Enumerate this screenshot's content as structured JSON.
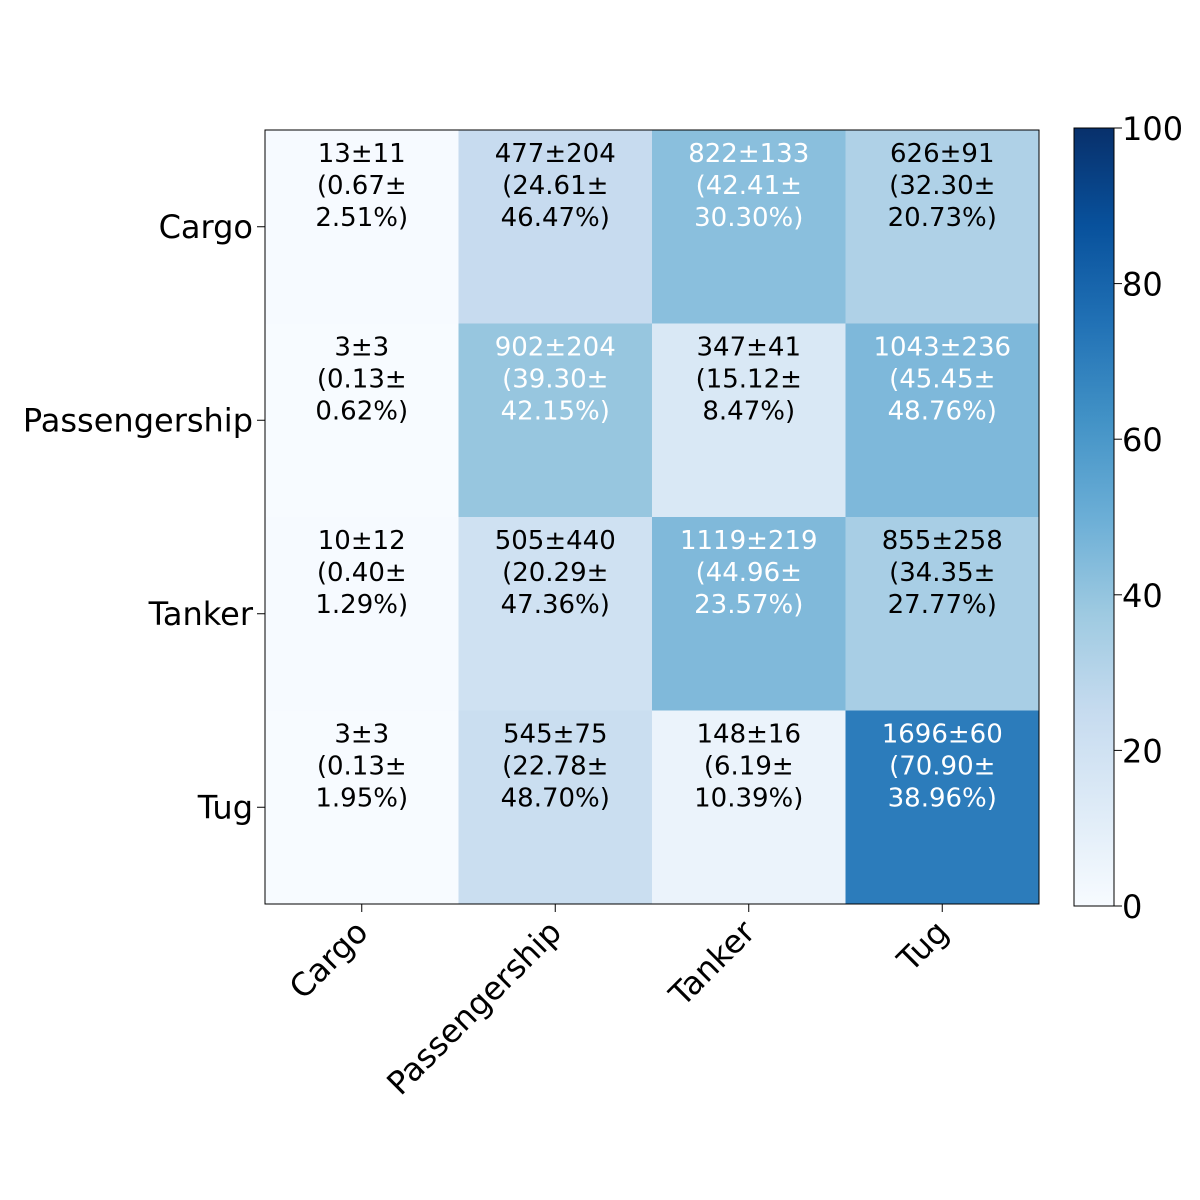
{
  "chart_data": {
    "type": "heatmap",
    "rows": [
      "Cargo",
      "Passengership",
      "Tanker",
      "Tug"
    ],
    "columns": [
      "Cargo",
      "Passengership",
      "Tanker",
      "Tug"
    ],
    "values": [
      [
        0.67,
        24.61,
        42.41,
        32.3
      ],
      [
        0.13,
        39.3,
        15.12,
        45.45
      ],
      [
        0.4,
        20.29,
        44.96,
        34.35
      ],
      [
        0.13,
        22.78,
        6.19,
        70.9
      ]
    ],
    "cell_labels": [
      [
        [
          "13±11",
          "(0.67±",
          "2.51%)"
        ],
        [
          "477±204",
          "(24.61±",
          "46.47%)"
        ],
        [
          "822±133",
          "(42.41±",
          "30.30%)"
        ],
        [
          "626±91",
          "(32.30±",
          "20.73%)"
        ]
      ],
      [
        [
          "3±3",
          "(0.13±",
          "0.62%)"
        ],
        [
          "902±204",
          "(39.30±",
          "42.15%)"
        ],
        [
          "347±41",
          "(15.12±",
          "8.47%)"
        ],
        [
          "1043±236",
          "(45.45±",
          "48.76%)"
        ]
      ],
      [
        [
          "10±12",
          "(0.40±",
          "1.29%)"
        ],
        [
          "505±440",
          "(20.29±",
          "47.36%)"
        ],
        [
          "1119±219",
          "(44.96±",
          "23.57%)"
        ],
        [
          "855±258",
          "(34.35±",
          "27.77%)"
        ]
      ],
      [
        [
          "3±3",
          "(0.13±",
          "1.95%)"
        ],
        [
          "545±75",
          "(22.78±",
          "48.70%)"
        ],
        [
          "148±16",
          "(6.19±",
          "10.39%)"
        ],
        [
          "1696±60",
          "(70.90±",
          "38.96%)"
        ]
      ]
    ],
    "text_color_dark": "#000000",
    "text_color_light": "#ffffff",
    "colormap": "Blues",
    "colorbar": {
      "range": [
        0,
        100
      ],
      "ticks": [
        "0",
        "20",
        "40",
        "60",
        "80",
        "100"
      ]
    },
    "title": "",
    "xlabel": "",
    "ylabel": ""
  }
}
